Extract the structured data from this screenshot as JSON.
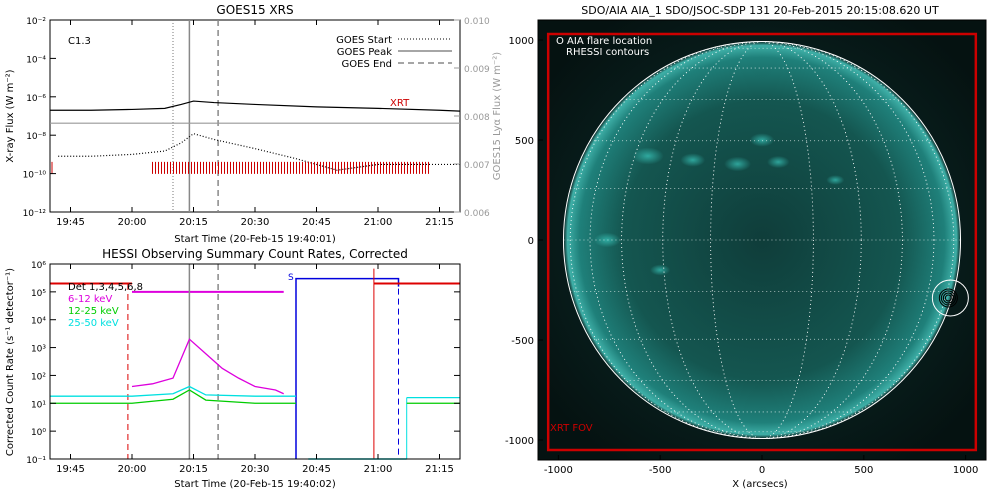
{
  "chart_data": [
    {
      "type": "line",
      "title": "GOES15 XRS",
      "xlabel": "Start Time (20-Feb-15 19:40:01)",
      "ylabel_left": "X-ray Flux (W m⁻²)",
      "ylabel_right": "GOES15 Lyα Flux (W m⁻²)",
      "flare_class": "C1.3",
      "xrt_label": "XRT",
      "y_scale": "log",
      "ylim": [
        1e-12,
        0.01
      ],
      "y2lim": [
        0.006,
        0.01
      ],
      "xticks": [
        "19:45",
        "20:00",
        "20:15",
        "20:30",
        "20:45",
        "21:00",
        "21:15"
      ],
      "yticks": [
        "10⁻²",
        "10⁻⁴",
        "10⁻⁶",
        "10⁻⁸",
        "10⁻¹⁰",
        "10⁻¹²"
      ],
      "y2ticks": [
        "0.010",
        "0.009",
        "0.008",
        "0.007",
        "0.006"
      ],
      "legend": [
        {
          "label": "GOES Start",
          "style": "dotted"
        },
        {
          "label": "GOES Peak",
          "style": "solid"
        },
        {
          "label": "GOES End",
          "style": "dashed"
        }
      ],
      "events": {
        "start": "20:10",
        "peak": "20:14",
        "end": "20:21"
      },
      "series": [
        {
          "name": "",
          "color": "#000000",
          "style": "solid",
          "x": [
            "19:40",
            "19:50",
            "20:00",
            "20:08",
            "20:12",
            "20:15",
            "20:20",
            "20:30",
            "20:45",
            "21:00",
            "21:15",
            "21:20"
          ],
          "y": [
            2e-07,
            2e-07,
            2.2e-07,
            2.5e-07,
            4e-07,
            6e-07,
            5e-07,
            4e-07,
            3e-07,
            2.5e-07,
            2e-07,
            1.8e-07
          ]
        },
        {
          "name": "",
          "color": "#000000",
          "style": "dotted",
          "x": [
            "19:42",
            "19:50",
            "20:00",
            "20:08",
            "20:12",
            "20:15",
            "20:20",
            "20:30",
            "20:40",
            "20:50",
            "21:00",
            "21:20"
          ],
          "y": [
            8e-10,
            8e-10,
            1e-09,
            1.5e-09,
            4e-09,
            1.2e-08,
            6e-09,
            2e-09,
            6e-10,
            1.5e-10,
            3e-10,
            3e-10
          ]
        },
        {
          "name": "",
          "color": "#999999",
          "style": "solid",
          "x": [
            "19:40",
            "21:20"
          ],
          "y2": [
            0.00785,
            0.00785
          ]
        }
      ],
      "xrt_obs": {
        "color": "#cc0000",
        "start": "20:05",
        "end": "21:13"
      }
    },
    {
      "type": "line",
      "title": "HESSI Observing Summary Count Rates, Corrected",
      "xlabel": "Start Time (20-Feb-15 19:40:02)",
      "ylabel": "Corrected Count Rate (s⁻¹ detector⁻¹)",
      "y_scale": "log",
      "ylim": [
        0.1,
        1000000.0
      ],
      "xticks": [
        "19:45",
        "20:00",
        "20:15",
        "20:30",
        "20:45",
        "21:00",
        "21:15"
      ],
      "yticks": [
        "10⁶",
        "10⁵",
        "10⁴",
        "10³",
        "10²",
        "10¹",
        "10⁰",
        "10⁻¹"
      ],
      "legend": [
        {
          "label": "Det 1,3,4,5,6,8",
          "color": "#000000"
        },
        {
          "label": "6-12 keV",
          "color": "#dd00dd"
        },
        {
          "label": "12-25 keV",
          "color": "#00cc00"
        },
        {
          "label": "25-50 keV",
          "color": "#00e0e0"
        }
      ],
      "s_label": "S",
      "series": [
        {
          "name": "6-12 keV",
          "color": "#dd00dd",
          "x": [
            "20:00",
            "20:05",
            "20:10",
            "20:14",
            "20:18",
            "20:22",
            "20:26",
            "20:30",
            "20:35",
            "20:37"
          ],
          "y": [
            40,
            50,
            80,
            2000,
            600,
            180,
            80,
            40,
            30,
            22
          ]
        },
        {
          "name": "12-25 keV",
          "color": "#00cc00",
          "x": [
            "19:40",
            "20:00",
            "20:10",
            "20:14",
            "20:18",
            "20:30",
            "20:40"
          ],
          "y": [
            10,
            10,
            14,
            30,
            13,
            10,
            10
          ]
        },
        {
          "name": "25-50 keV",
          "color": "#00e0e0",
          "x": [
            "19:40",
            "20:00",
            "20:10",
            "20:14",
            "20:18",
            "20:30",
            "20:40"
          ],
          "y": [
            18,
            18,
            22,
            40,
            20,
            18,
            18
          ]
        },
        {
          "name": "",
          "color": "#00e0e0",
          "x": [
            "21:07",
            "21:20"
          ],
          "y": [
            16,
            16
          ]
        },
        {
          "name": "",
          "color": "#00cc00",
          "x": [
            "21:07",
            "21:20"
          ],
          "y": [
            10,
            10
          ]
        }
      ],
      "decimation": [
        {
          "color": "#dd00dd",
          "x": [
            "20:00",
            "20:37"
          ],
          "y": 100000
        },
        {
          "color": "#dd0000",
          "x": [
            "19:40",
            "20:00"
          ],
          "y": 200000
        },
        {
          "color": "#dd0000",
          "x": [
            "20:59",
            "21:20"
          ],
          "y": 200000
        }
      ],
      "saa": {
        "color": "#0000dd",
        "start": "20:40",
        "end": "21:05",
        "level": 300000
      },
      "night": {
        "color": "#dd0000",
        "start": "20:59",
        "end": "21:03"
      },
      "events": {
        "start_dashed": "19:59",
        "peak": "20:14",
        "end_dashed": "20:21"
      }
    },
    {
      "type": "image",
      "title": "SDO/AIA AIA_1 SDO/JSOC-SDP 131 20-Feb-2015 20:15:08.620 UT",
      "xlabel": "X (arcsecs)",
      "ylabel": "",
      "xlim": [
        -1100,
        1100
      ],
      "ylim": [
        -1100,
        1100
      ],
      "xticks": [
        "-1000",
        "-500",
        "0",
        "500",
        "1000"
      ],
      "yticks": [
        "1000",
        "500",
        "0",
        "-500",
        "-1000"
      ],
      "legend": [
        "O AIA flare location",
        "RHESSI contours"
      ],
      "fov_label": "XRT FOV",
      "flare_location": [
        925,
        -290
      ],
      "solar_radius": 975,
      "fov_color": "#cc0000"
    }
  ]
}
